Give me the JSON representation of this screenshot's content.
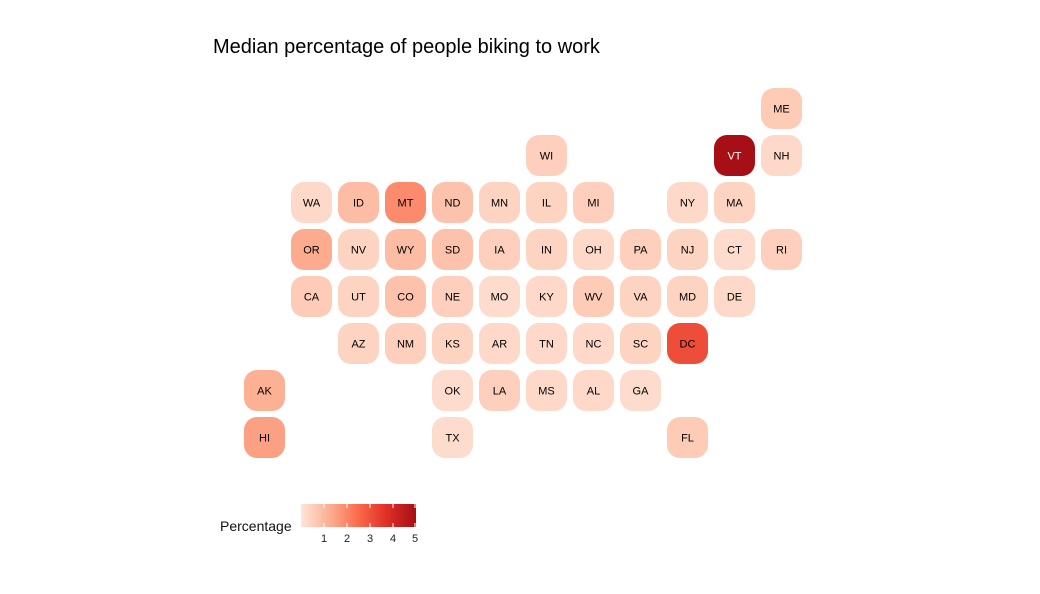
{
  "chart_data": {
    "type": "heatmap",
    "subtype": "tile-grid map",
    "title": "Median percentage of people biking to work",
    "legend": {
      "title": "Percentage",
      "ticks": [
        1,
        2,
        3,
        4,
        5
      ],
      "range": [
        0,
        5
      ],
      "colors": [
        "#fee5d9",
        "#fcae91",
        "#fb6a4a",
        "#de2d26",
        "#a50f15"
      ]
    },
    "tiles": [
      {
        "state": "ME",
        "col": 11,
        "row": 0,
        "value": 0.6
      },
      {
        "state": "WI",
        "col": 6,
        "row": 1,
        "value": 0.5
      },
      {
        "state": "VT",
        "col": 10,
        "row": 1,
        "value": 5.0
      },
      {
        "state": "NH",
        "col": 11,
        "row": 1,
        "value": 0.3
      },
      {
        "state": "WA",
        "col": 1,
        "row": 2,
        "value": 0.3
      },
      {
        "state": "ID",
        "col": 2,
        "row": 2,
        "value": 0.9
      },
      {
        "state": "MT",
        "col": 3,
        "row": 2,
        "value": 1.9
      },
      {
        "state": "ND",
        "col": 4,
        "row": 2,
        "value": 0.8
      },
      {
        "state": "MN",
        "col": 5,
        "row": 2,
        "value": 0.4
      },
      {
        "state": "IL",
        "col": 6,
        "row": 2,
        "value": 0.4
      },
      {
        "state": "MI",
        "col": 7,
        "row": 2,
        "value": 0.5
      },
      {
        "state": "NY",
        "col": 9,
        "row": 2,
        "value": 0.3
      },
      {
        "state": "MA",
        "col": 10,
        "row": 2,
        "value": 0.4
      },
      {
        "state": "OR",
        "col": 1,
        "row": 3,
        "value": 1.3
      },
      {
        "state": "NV",
        "col": 2,
        "row": 3,
        "value": 0.4
      },
      {
        "state": "WY",
        "col": 3,
        "row": 3,
        "value": 0.9
      },
      {
        "state": "SD",
        "col": 4,
        "row": 3,
        "value": 0.8
      },
      {
        "state": "IA",
        "col": 5,
        "row": 3,
        "value": 0.5
      },
      {
        "state": "IN",
        "col": 6,
        "row": 3,
        "value": 0.4
      },
      {
        "state": "OH",
        "col": 7,
        "row": 3,
        "value": 0.3
      },
      {
        "state": "PA",
        "col": 8,
        "row": 3,
        "value": 0.5
      },
      {
        "state": "NJ",
        "col": 9,
        "row": 3,
        "value": 0.4
      },
      {
        "state": "CT",
        "col": 10,
        "row": 3,
        "value": 0.2
      },
      {
        "state": "RI",
        "col": 11,
        "row": 3,
        "value": 0.5
      },
      {
        "state": "CA",
        "col": 1,
        "row": 4,
        "value": 0.6
      },
      {
        "state": "UT",
        "col": 2,
        "row": 4,
        "value": 0.4
      },
      {
        "state": "CO",
        "col": 3,
        "row": 4,
        "value": 0.8
      },
      {
        "state": "NE",
        "col": 4,
        "row": 4,
        "value": 0.5
      },
      {
        "state": "MO",
        "col": 5,
        "row": 4,
        "value": 0.2
      },
      {
        "state": "KY",
        "col": 6,
        "row": 4,
        "value": 0.3
      },
      {
        "state": "WV",
        "col": 7,
        "row": 4,
        "value": 0.6
      },
      {
        "state": "VA",
        "col": 8,
        "row": 4,
        "value": 0.4
      },
      {
        "state": "MD",
        "col": 9,
        "row": 4,
        "value": 0.4
      },
      {
        "state": "DE",
        "col": 10,
        "row": 4,
        "value": 0.3
      },
      {
        "state": "AZ",
        "col": 2,
        "row": 5,
        "value": 0.4
      },
      {
        "state": "NM",
        "col": 3,
        "row": 5,
        "value": 0.5
      },
      {
        "state": "KS",
        "col": 4,
        "row": 5,
        "value": 0.4
      },
      {
        "state": "AR",
        "col": 5,
        "row": 5,
        "value": 0.3
      },
      {
        "state": "TN",
        "col": 6,
        "row": 5,
        "value": 0.3
      },
      {
        "state": "NC",
        "col": 7,
        "row": 5,
        "value": 0.3
      },
      {
        "state": "SC",
        "col": 8,
        "row": 5,
        "value": 0.4
      },
      {
        "state": "DC",
        "col": 9,
        "row": 5,
        "value": 3.1
      },
      {
        "state": "AK",
        "col": 0,
        "row": 6,
        "value": 1.2
      },
      {
        "state": "OK",
        "col": 4,
        "row": 6,
        "value": 0.2
      },
      {
        "state": "LA",
        "col": 5,
        "row": 6,
        "value": 0.5
      },
      {
        "state": "MS",
        "col": 6,
        "row": 6,
        "value": 0.3
      },
      {
        "state": "AL",
        "col": 7,
        "row": 6,
        "value": 0.3
      },
      {
        "state": "GA",
        "col": 8,
        "row": 6,
        "value": 0.2
      },
      {
        "state": "HI",
        "col": 0,
        "row": 7,
        "value": 1.5
      },
      {
        "state": "TX",
        "col": 4,
        "row": 7,
        "value": 0.2
      },
      {
        "state": "FL",
        "col": 9,
        "row": 7,
        "value": 0.6
      }
    ]
  }
}
